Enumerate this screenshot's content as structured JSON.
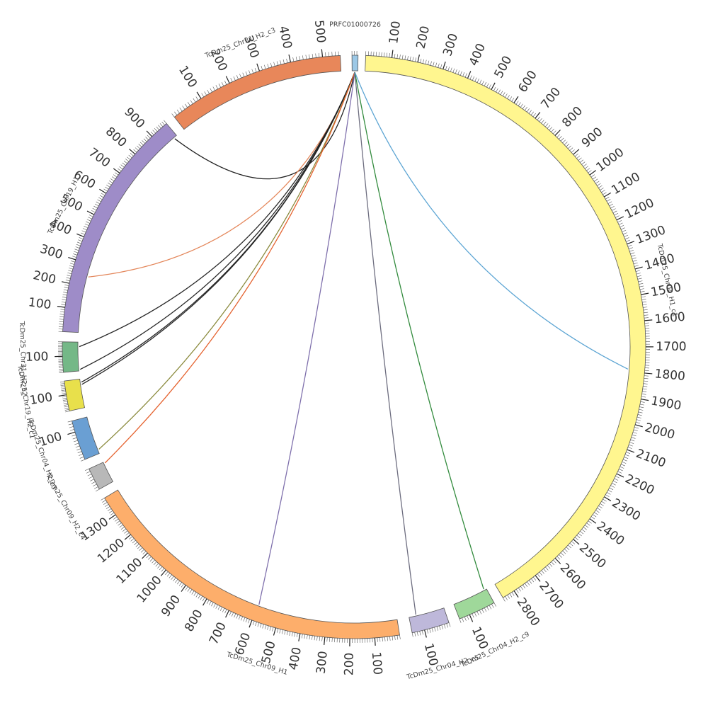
{
  "diagram": {
    "type": "circos",
    "tick_step": 100,
    "contigs": [
      {
        "id": "TcDm25_Chr04_H1_c1",
        "label": "TcDm25_Chr04_H1_c1",
        "length": 2850,
        "color": "#FFF68F",
        "ticks": [
          "100",
          "200",
          "300",
          "400",
          "500",
          "600",
          "700",
          "800",
          "900",
          "1000",
          "1100",
          "1200",
          "1300",
          "1400",
          "1500",
          "1600",
          "1700",
          "1800",
          "1900",
          "2000",
          "2100",
          "2200",
          "2300",
          "2400",
          "2500",
          "2600",
          "2700",
          "2800"
        ]
      },
      {
        "id": "TcDm25_Chr04_H2_c9",
        "label": "TcDm25_Chr04_H2_c9",
        "length": 140,
        "color": "#9FD89A",
        "ticks": [
          "100"
        ]
      },
      {
        "id": "TcDm25_Chr04_H2_c5",
        "label": "TcDm25_Chr04_H2_c5",
        "length": 150,
        "color": "#BEB8DA",
        "ticks": [
          "100"
        ]
      },
      {
        "id": "TcDm25_Chr09_H1",
        "label": "TcDm25_Chr09_H1",
        "length": 1380,
        "color": "#FDAE6B",
        "ticks": [
          "100",
          "200",
          "300",
          "400",
          "500",
          "600",
          "700",
          "800",
          "900",
          "1000",
          "1100",
          "1200",
          "1300"
        ]
      },
      {
        "id": "TcDm25_Chr09_H2_c4",
        "label": "TcDm25_Chr09_H2_c4",
        "length": 80,
        "color": "#B8B8B8",
        "ticks": []
      },
      {
        "id": "TcDm25_Chr04_H2_c3",
        "label": "TcDm25_Chr04_H2_c3",
        "length": 140,
        "color": "#6A9FD3",
        "ticks": [
          "100"
        ]
      },
      {
        "id": "TcDm25_Chr19_H2_c1",
        "label": "TcDm25_Chr19_H2_c1",
        "length": 185,
        "color": "#E8E04B",
        "ticks": [
          "100"
        ]
      },
      {
        "id": "TcDm25_Chr31_H2_c2",
        "label": "TcDm25_Chr31_H2_c2",
        "length": 190,
        "color": "#74B887",
        "ticks": [
          "100"
        ]
      },
      {
        "id": "TcDm25_Chr19_H1",
        "label": "TcDm25_Chr19_H1",
        "length": 980,
        "color": "#9E8CC8",
        "ticks": [
          "100",
          "200",
          "300",
          "400",
          "500",
          "600",
          "700",
          "800",
          "900"
        ]
      },
      {
        "id": "TcDm25_Chr31_H2_c3",
        "label": "TcDm25_Chr31_H2_c3",
        "length": 555,
        "color": "#E8875A",
        "ticks": [
          "100",
          "200",
          "300",
          "400",
          "500"
        ]
      },
      {
        "id": "PRFC01000726",
        "label": "PRFC01000726",
        "length": 25,
        "color": "#9CC8E6",
        "ticks": []
      }
    ],
    "links": [
      {
        "source": "PRFC01000726",
        "target": "TcDm25_Chr19_H1",
        "target_pos": 965,
        "color": "#1A1A1A",
        "width": 1
      },
      {
        "source": "PRFC01000726",
        "target": "TcDm25_Chr19_H1",
        "target_pos": 245,
        "color": "#E8875A",
        "width": 3
      },
      {
        "source": "PRFC01000726",
        "target": "TcDm25_Chr31_H2_c2",
        "target_pos": 160,
        "color": "#222222",
        "width": 1
      },
      {
        "source": "PRFC01000726",
        "target": "TcDm25_Chr31_H2_c2",
        "target_pos": 10,
        "color": "#222222",
        "width": 1
      },
      {
        "source": "PRFC01000726",
        "target": "TcDm25_Chr19_H2_c1",
        "target_pos": 165,
        "color": "#222222",
        "width": 1
      },
      {
        "source": "PRFC01000726",
        "target": "TcDm25_Chr19_H2_c1",
        "target_pos": 150,
        "color": "#222222",
        "width": 1
      },
      {
        "source": "PRFC01000726",
        "target": "TcDm25_Chr04_H2_c3",
        "target_pos": 15,
        "color": "#8A8A3A",
        "width": 1.5
      },
      {
        "source": "PRFC01000726",
        "target": "TcDm25_Chr09_H2_c4",
        "target_pos": 75,
        "color": "#E8602A",
        "width": 4
      },
      {
        "source": "PRFC01000726",
        "target": "TcDm25_Chr09_H1",
        "target_pos": 595,
        "color": "#7E6FAE",
        "width": 5
      },
      {
        "source": "PRFC01000726",
        "target": "TcDm25_Chr04_H2_c5",
        "target_pos": 120,
        "color": "#6B6B7E",
        "width": 5
      },
      {
        "source": "PRFC01000726",
        "target": "TcDm25_Chr04_H2_c9",
        "target_pos": 10,
        "color": "#2E8B3A",
        "width": 5
      },
      {
        "source": "PRFC01000726",
        "target": "TcDm25_Chr04_H1_c1",
        "target_pos": 1790,
        "color": "#5AA5D6",
        "width": 5
      }
    ]
  }
}
